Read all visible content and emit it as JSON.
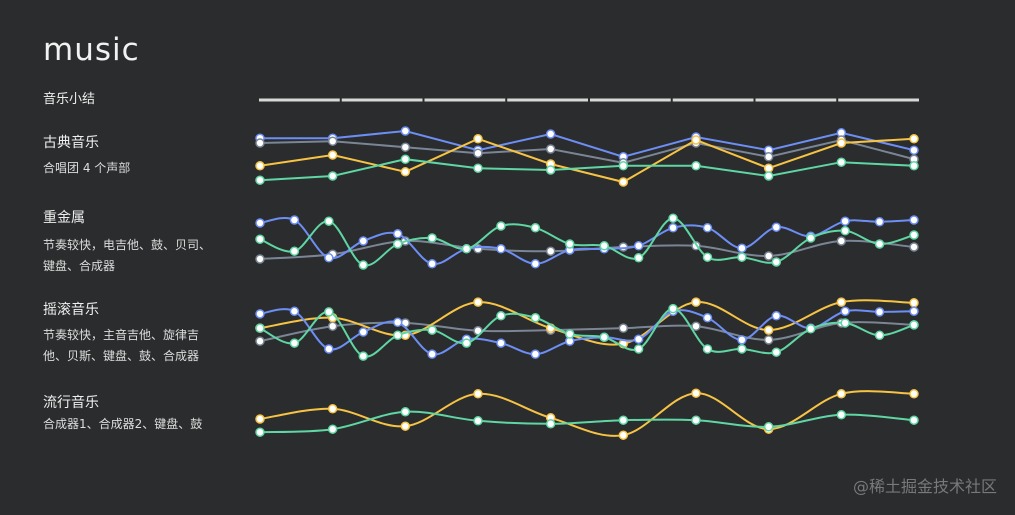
{
  "title": "music",
  "summary_label": "音乐小结",
  "watermark": "@稀土掘金技术社区",
  "colors": {
    "blue": "#6d8ef5",
    "green": "#5fd6a3",
    "yellow": "#f6c344",
    "gray": "#7a8595"
  },
  "sections": [
    {
      "name": "古典音乐",
      "description": "合唱团 4 个声部",
      "smooth": false,
      "series": [
        {
          "color": "blue",
          "values": [
            83,
            83,
            95,
            63,
            90,
            52,
            85,
            63,
            92,
            63
          ]
        },
        {
          "color": "gray",
          "values": [
            75,
            78,
            68,
            58,
            65,
            42,
            75,
            52,
            80,
            48
          ]
        },
        {
          "color": "yellow",
          "values": [
            37,
            55,
            27,
            82,
            40,
            10,
            80,
            33,
            75,
            82
          ]
        },
        {
          "color": "green",
          "values": [
            13,
            20,
            48,
            33,
            30,
            37,
            37,
            20,
            43,
            37
          ]
        }
      ]
    },
    {
      "name": "重金属",
      "description": "节奏较快，电吉他、鼓、贝司、键盘、合成器",
      "smooth": true,
      "series": [
        {
          "color": "gray",
          "values": [
            15,
            23,
            45,
            32,
            28,
            35,
            37,
            20,
            45,
            35
          ]
        },
        {
          "color": "blue",
          "values": [
            75,
            80,
            17,
            45,
            57,
            7,
            32,
            32,
            7,
            30,
            32,
            37,
            67,
            67,
            33,
            68,
            53,
            78,
            77,
            80
          ]
        },
        {
          "color": "green",
          "values": [
            48,
            28,
            78,
            5,
            40,
            50,
            32,
            70,
            67,
            40,
            37,
            17,
            83,
            18,
            18,
            10,
            50,
            62,
            40,
            55
          ]
        }
      ]
    },
    {
      "name": "摇滚音乐",
      "description": "节奏较快，主音吉他、旋律吉他、贝斯、键盘、鼓、合成器",
      "smooth": true,
      "series": [
        {
          "color": "gray",
          "values": [
            29,
            52,
            57,
            45,
            46,
            49,
            52,
            31,
            57,
            54
          ]
        },
        {
          "color": "yellow",
          "values": [
            49,
            65,
            38,
            89,
            49,
            25,
            89,
            46,
            89,
            88
          ]
        },
        {
          "color": "blue",
          "values": [
            71,
            75,
            17,
            43,
            58,
            9,
            32,
            26,
            9,
            29,
            35,
            32,
            75,
            65,
            31,
            68,
            49,
            75,
            74,
            75
          ]
        },
        {
          "color": "green",
          "values": [
            49,
            26,
            74,
            6,
            38,
            46,
            26,
            68,
            65,
            40,
            35,
            17,
            79,
            17,
            17,
            12,
            48,
            57,
            38,
            54
          ]
        }
      ]
    },
    {
      "name": "流行音乐",
      "description": "合成器1、合成器2、键盘、鼓",
      "smooth": true,
      "series": [
        {
          "color": "yellow",
          "values": [
            35,
            52,
            23,
            77,
            37,
            8,
            78,
            18,
            77,
            77
          ]
        },
        {
          "color": "green",
          "values": [
            13,
            18,
            47,
            32,
            27,
            33,
            33,
            22,
            42,
            33
          ]
        }
      ]
    }
  ]
}
